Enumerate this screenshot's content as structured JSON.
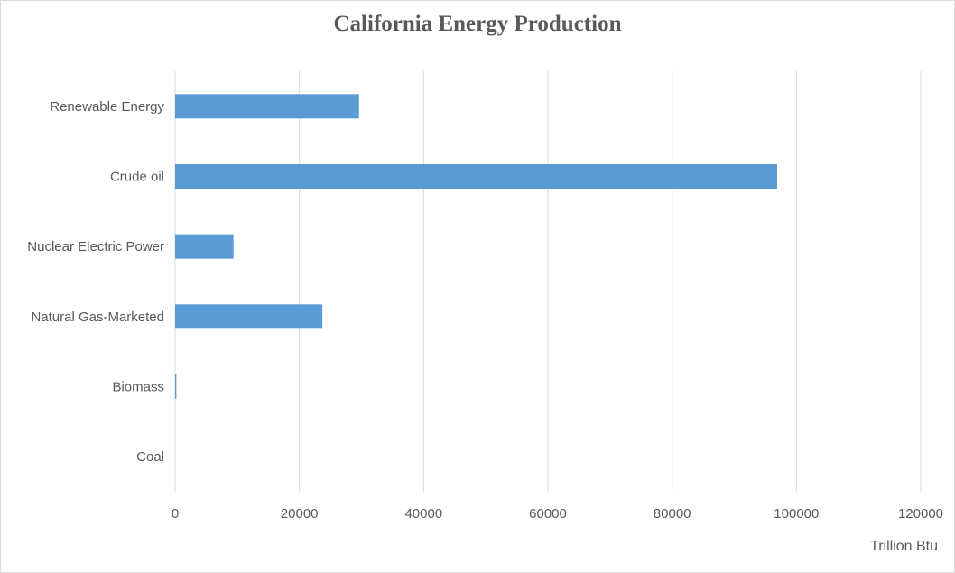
{
  "chart_data": {
    "type": "bar",
    "orientation": "horizontal",
    "title": "California Energy Production",
    "xlabel": "Trillion Btu",
    "ylabel": "",
    "categories": [
      "Renewable Energy",
      "Crude oil",
      "Nuclear Electric Power",
      "Natural Gas-Marketed",
      "Biomass",
      "Coal"
    ],
    "values": [
      29600,
      96900,
      9400,
      23700,
      200,
      0
    ],
    "xlim": [
      0,
      120000
    ],
    "ticks": [
      "0",
      "20000",
      "40000",
      "60000",
      "80000",
      "100000",
      "120000"
    ],
    "grid": "vertical",
    "legend": "none",
    "bar_color": "#5b9bd5",
    "grid_color": "#d9d9d9"
  }
}
